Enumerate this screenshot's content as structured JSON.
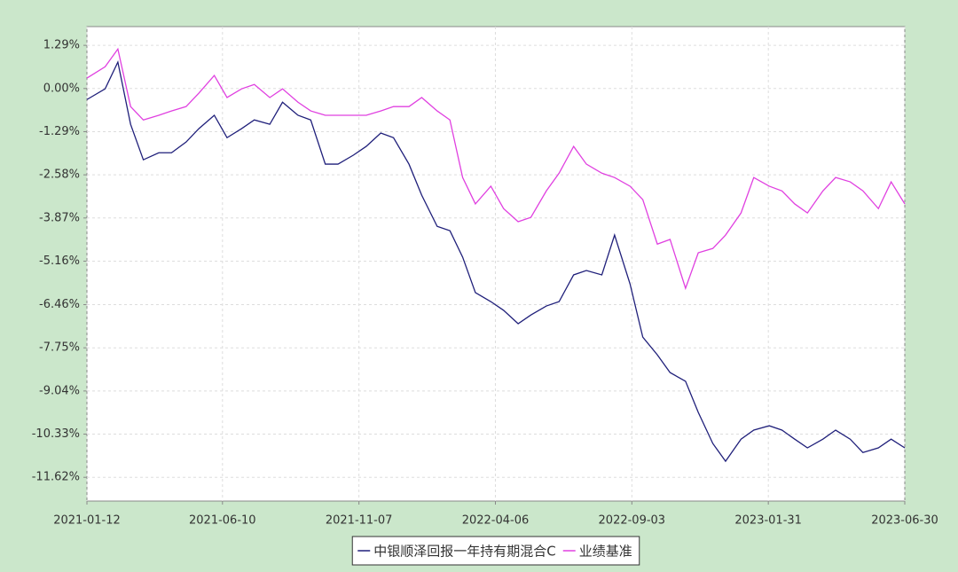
{
  "chart_data": {
    "type": "line",
    "x": [
      "2021-01-12",
      "2021-02-01",
      "2021-02-15",
      "2021-03-01",
      "2021-03-15",
      "2021-04-01",
      "2021-04-15",
      "2021-05-01",
      "2021-05-15",
      "2021-06-01",
      "2021-06-15",
      "2021-07-01",
      "2021-07-15",
      "2021-08-01",
      "2021-08-15",
      "2021-09-01",
      "2021-09-15",
      "2021-10-01",
      "2021-10-15",
      "2021-11-01",
      "2021-11-15",
      "2021-12-01",
      "2021-12-15",
      "2022-01-01",
      "2022-01-15",
      "2022-02-01",
      "2022-02-15",
      "2022-03-01",
      "2022-03-15",
      "2022-04-01",
      "2022-04-15",
      "2022-05-01",
      "2022-05-15",
      "2022-06-01",
      "2022-06-15",
      "2022-07-01",
      "2022-07-15",
      "2022-08-01",
      "2022-08-15",
      "2022-09-01",
      "2022-09-15",
      "2022-10-01",
      "2022-10-15",
      "2022-11-01",
      "2022-11-15",
      "2022-12-01",
      "2022-12-15",
      "2023-01-01",
      "2023-01-15",
      "2023-02-01",
      "2023-02-15",
      "2023-03-01",
      "2023-03-15",
      "2023-04-01",
      "2023-04-15",
      "2023-05-01",
      "2023-05-15",
      "2023-06-01",
      "2023-06-15",
      "2023-06-30"
    ],
    "series": [
      {
        "name": "中银顺泽回报一年持有期混合C",
        "color": "#1f1f7a",
        "values": [
          -0.33,
          -0.01,
          0.79,
          -1.07,
          -2.13,
          -1.92,
          -1.92,
          -1.6,
          -1.2,
          -0.8,
          -1.47,
          -1.2,
          -0.94,
          -1.07,
          -0.41,
          -0.8,
          -0.94,
          -2.26,
          -2.26,
          -1.99,
          -1.73,
          -1.33,
          -1.47,
          -2.26,
          -3.19,
          -4.12,
          -4.25,
          -5.04,
          -6.1,
          -6.37,
          -6.63,
          -7.03,
          -6.77,
          -6.5,
          -6.37,
          -5.57,
          -5.44,
          -5.57,
          -4.38,
          -5.84,
          -7.43,
          -7.96,
          -8.49,
          -8.75,
          -9.68,
          -10.61,
          -11.14,
          -10.48,
          -10.21,
          -10.08,
          -10.21,
          -10.48,
          -10.74,
          -10.48,
          -10.21,
          -10.48,
          -10.88,
          -10.74,
          -10.48,
          -10.74
        ]
      },
      {
        "name": "业绩基准",
        "color": "#e040e0",
        "values": [
          0.31,
          0.65,
          1.18,
          -0.54,
          -0.94,
          -0.8,
          -0.67,
          -0.54,
          -0.14,
          0.39,
          -0.27,
          -0.01,
          0.12,
          -0.27,
          -0.01,
          -0.41,
          -0.67,
          -0.8,
          -0.8,
          -0.8,
          -0.8,
          -0.67,
          -0.54,
          -0.54,
          -0.27,
          -0.67,
          -0.94,
          -2.66,
          -3.45,
          -2.92,
          -3.59,
          -3.98,
          -3.85,
          -3.06,
          -2.53,
          -1.73,
          -2.26,
          -2.53,
          -2.66,
          -2.92,
          -3.32,
          -4.65,
          -4.51,
          -5.97,
          -4.91,
          -4.78,
          -4.38,
          -3.72,
          -2.66,
          -2.92,
          -3.06,
          -3.45,
          -3.72,
          -3.06,
          -2.66,
          -2.79,
          -3.06,
          -3.59,
          -2.79,
          -3.45
        ]
      }
    ],
    "xlim": [
      "2021-01-12",
      "2023-06-30"
    ],
    "xticks": [
      "2021-01-12",
      "2021-06-10",
      "2021-11-07",
      "2022-04-06",
      "2022-09-03",
      "2023-01-31",
      "2023-06-30"
    ],
    "ylim": [
      -12.33,
      1.85
    ],
    "yticks": [
      {
        "value": 1.29,
        "label": "1.29%"
      },
      {
        "value": 0,
        "label": "0.00%"
      },
      {
        "value": -1.29,
        "label": "-1.29%"
      },
      {
        "value": -2.58,
        "label": "-2.58%"
      },
      {
        "value": -3.87,
        "label": "-3.87%"
      },
      {
        "value": -5.16,
        "label": "-5.16%"
      },
      {
        "value": -6.46,
        "label": "-6.46%"
      },
      {
        "value": -7.75,
        "label": "-7.75%"
      },
      {
        "value": -9.04,
        "label": "-9.04%"
      },
      {
        "value": -10.33,
        "label": "-10.33%"
      },
      {
        "value": -11.62,
        "label": "-11.62%"
      }
    ],
    "grid": true,
    "legend": "bottom"
  }
}
